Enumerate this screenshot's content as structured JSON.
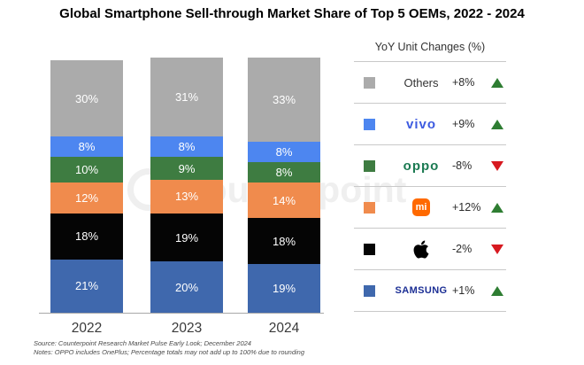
{
  "title": "Global Smartphone Sell-through Market Share of Top 5 OEMs, 2022 - 2024",
  "watermark": "Counterpoint",
  "chart_data": {
    "type": "bar",
    "stacked": true,
    "categories": [
      "2022",
      "2023",
      "2024"
    ],
    "series": [
      {
        "name": "Samsung",
        "color": "#3f68ad",
        "values": [
          21,
          20,
          19
        ]
      },
      {
        "name": "Apple",
        "color": "#050505",
        "values": [
          18,
          19,
          18
        ]
      },
      {
        "name": "Xiaomi",
        "color": "#f08b4d",
        "values": [
          12,
          13,
          14
        ]
      },
      {
        "name": "OPPO",
        "color": "#3e7c41",
        "values": [
          10,
          9,
          8
        ]
      },
      {
        "name": "vivo",
        "color": "#4d86f0",
        "values": [
          8,
          8,
          8
        ]
      },
      {
        "name": "Others",
        "color": "#ababab",
        "values": [
          30,
          31,
          33
        ]
      }
    ],
    "value_suffix": "%",
    "ylim": [
      0,
      100
    ],
    "grid": false,
    "legend_position": "right"
  },
  "legend": {
    "title": "YoY Unit Changes (%)",
    "up_color": "#2e7d32",
    "down_color": "#d71920",
    "rows": [
      {
        "brand": "Others",
        "logo": "text",
        "swatch": "#ababab",
        "change": "+8%",
        "direction": "up",
        "icon": "triangle-up-icon"
      },
      {
        "brand": "vivo",
        "logo": "vivo",
        "swatch": "#4d86f0",
        "change": "+9%",
        "direction": "up",
        "icon": "triangle-up-icon"
      },
      {
        "brand": "oppo",
        "logo": "oppo",
        "swatch": "#3e7c41",
        "change": "-8%",
        "direction": "down",
        "icon": "triangle-down-icon"
      },
      {
        "brand": "mi",
        "logo": "mi",
        "swatch": "#f08b4d",
        "change": "+12%",
        "direction": "up",
        "icon": "triangle-up-icon"
      },
      {
        "brand": "Apple",
        "logo": "apple",
        "swatch": "#050505",
        "change": "-2%",
        "direction": "down",
        "icon": "triangle-down-icon"
      },
      {
        "brand": "SAMSUNG",
        "logo": "samsung",
        "swatch": "#3f68ad",
        "change": "+1%",
        "direction": "up",
        "icon": "triangle-up-icon"
      }
    ]
  },
  "footer": {
    "source": "Source: Counterpoint Research Market Pulse Early Look; December 2024",
    "notes": "Notes: OPPO includes OnePlus; Percentage totals may not add up to 100% due to rounding"
  }
}
